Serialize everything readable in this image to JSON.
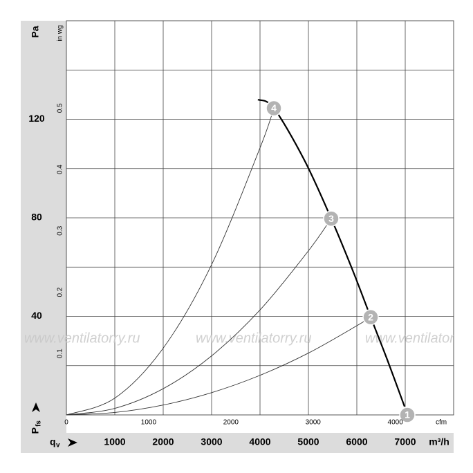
{
  "chart_data": {
    "type": "fan-curve",
    "y_label": "Pa",
    "y2_label": "in wg",
    "x_label": "m³/h",
    "x2_label": "cfm",
    "pressure_symbol": "P",
    "pressure_subscript": "fs",
    "flow_symbol": "q",
    "flow_subscript": "v",
    "watermark": "www.ventilatorry.ru",
    "xlim": [
      0,
      8000
    ],
    "xticks": [
      1000,
      2000,
      3000,
      4000,
      5000,
      6000,
      7000
    ],
    "x2lim": [
      0,
      4709
    ],
    "x2ticks": [
      0,
      1000,
      2000,
      3000,
      4000
    ],
    "ylim": [
      0,
      160
    ],
    "yticks": [
      40,
      80,
      120
    ],
    "y2lim": [
      0,
      0.6424
    ],
    "y2ticks": [
      0.1,
      0.2,
      0.3,
      0.4,
      0.5
    ],
    "grid_x": [
      1000,
      2000,
      3000,
      4000,
      5000,
      6000,
      7000
    ],
    "grid_y": [
      20,
      40,
      60,
      80,
      100,
      120,
      140
    ],
    "grid": true,
    "fan_curve": {
      "color": "#000000",
      "x": [
        3957,
        4286,
        4914,
        5471,
        5914,
        6286,
        6629,
        6986
      ],
      "y": [
        128,
        124.5,
        103.5,
        79.7,
        58.7,
        39.7,
        22.4,
        3.4
      ]
    },
    "system_curves": [
      {
        "color": "#333333",
        "x": [
          0,
          1000,
          2000,
          3000,
          4000,
          4286
        ],
        "y": [
          0,
          6.8,
          27.1,
          61.0,
          108.4,
          124.5
        ]
      },
      {
        "color": "#333333",
        "x": [
          0,
          1000,
          2000,
          3000,
          4000,
          5000,
          5471
        ],
        "y": [
          0,
          2.66,
          10.65,
          23.97,
          42.6,
          66.6,
          79.7
        ]
      },
      {
        "color": "#333333",
        "x": [
          0,
          1000,
          2000,
          3000,
          4000,
          5000,
          6000,
          6286
        ],
        "y": [
          0,
          1.0,
          4.02,
          9.04,
          16.07,
          25.1,
          36.2,
          39.7
        ]
      }
    ],
    "operating_points": [
      {
        "label": "1",
        "x": 7043,
        "y": 0
      },
      {
        "label": "2",
        "x": 6286,
        "y": 39.7
      },
      {
        "label": "3",
        "x": 5471,
        "y": 79.7
      },
      {
        "label": "4",
        "x": 4286,
        "y": 124.5
      }
    ],
    "point_color": "#b3b3b3"
  }
}
